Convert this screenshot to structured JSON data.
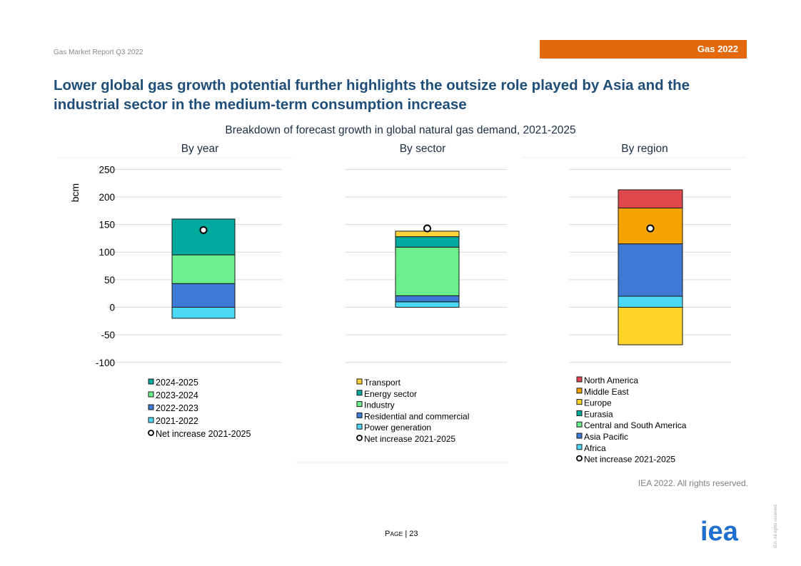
{
  "header": {
    "report_name": "Gas Market Report Q3 2022",
    "badge": "Gas 2022",
    "headline": "Lower global gas growth potential further highlights the outsize role played by Asia and the industrial sector in the medium-term consumption increase"
  },
  "figure_title": "Breakdown of forecast growth in global natural gas demand, 2021-2025",
  "chart_data": [
    {
      "type": "bar",
      "title": "By year",
      "ylabel": "bcm",
      "ylim": [
        -100,
        250
      ],
      "yticks": [
        "250",
        "200",
        "150",
        "100",
        "50",
        "0",
        "-50",
        "-100"
      ],
      "stacking": "stacked",
      "series": [
        {
          "name": "2024-2025",
          "value": 65,
          "color": "#00a99d"
        },
        {
          "name": "2023-2024",
          "value": 52,
          "color": "#6cf08e"
        },
        {
          "name": "2022-2023",
          "value": 43,
          "color": "#3d79d5"
        },
        {
          "name": "2021-2022",
          "value": -20,
          "color": "#4dd7f7"
        }
      ],
      "net_increase": {
        "name": "Net increase 2021-2025",
        "value": 140
      },
      "legend": [
        "2024-2025",
        "2023-2024",
        "2022-2023",
        "2021-2022",
        "Net increase 2021-2025"
      ],
      "legend_position": "bottom"
    },
    {
      "type": "bar",
      "title": "By sector",
      "ylim": [
        -100,
        250
      ],
      "stacking": "stacked",
      "series": [
        {
          "name": "Transport",
          "value": 10,
          "color": "#ffd43b"
        },
        {
          "name": "Energy sector",
          "value": 19,
          "color": "#00a99d"
        },
        {
          "name": "Industry",
          "value": 88,
          "color": "#6cf08e"
        },
        {
          "name": "Residential and commercial",
          "value": 11,
          "color": "#3d79d5"
        },
        {
          "name": "Power generation",
          "value": 10,
          "color": "#4dd7f7"
        }
      ],
      "net_increase": {
        "name": "Net increase 2021-2025",
        "value": 143
      },
      "legend": [
        "Transport",
        "Energy sector",
        "Industry",
        "Residential and commercial",
        "Power generation",
        "Net increase 2021-2025"
      ],
      "legend_position": "bottom"
    },
    {
      "type": "bar",
      "title": "By region",
      "ylim": [
        -100,
        250
      ],
      "stacking": "stacked",
      "series": [
        {
          "name": "North America",
          "value": 33,
          "color": "#e0474c"
        },
        {
          "name": "Middle East",
          "value": 65,
          "color": "#f4a300"
        },
        {
          "name": "Europe",
          "value": -68,
          "color": "#ffd42a"
        },
        {
          "name": "Eurasia",
          "value": 0,
          "color": "#00a99d"
        },
        {
          "name": "Central and South America",
          "value": 0,
          "color": "#6cf08e"
        },
        {
          "name": "Asia Pacific",
          "value": 95,
          "color": "#3d79d5"
        },
        {
          "name": "Africa",
          "value": 20,
          "color": "#4dd7f7"
        }
      ],
      "net_increase": {
        "name": "Net increase 2021-2025",
        "value": 143
      },
      "legend": [
        "North America",
        "Middle East",
        "Europe",
        "Eurasia",
        "Central and South America",
        "Asia Pacific",
        "Africa",
        "Net increase 2021-2025"
      ],
      "legend_position": "bottom"
    }
  ],
  "footer": {
    "rights": "IEA 2022. All rights reserved.",
    "page_prefix_p": "P",
    "page_prefix_rest": "AGE",
    "page_sep": " | ",
    "page_number": "23",
    "logo_text": "iea",
    "tiny_rights": "IEA. All rights reserved."
  }
}
